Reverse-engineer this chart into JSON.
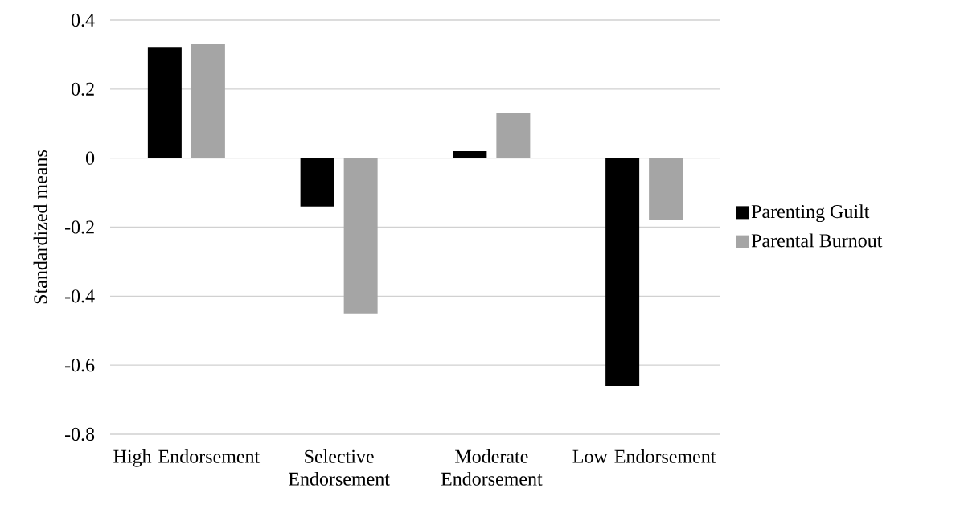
{
  "chart_data": {
    "type": "bar",
    "ylabel": "Standardized means",
    "categories": [
      "High Endorsement",
      "Selective Endorsement",
      "Moderate Endorsement",
      "Low Endorsement"
    ],
    "series": [
      {
        "name": "Parenting Guilt",
        "color": "#000000",
        "values": [
          0.32,
          -0.14,
          0.02,
          -0.66
        ]
      },
      {
        "name": "Parental Burnout",
        "color": "#a5a5a5",
        "values": [
          0.33,
          -0.45,
          0.13,
          -0.18
        ]
      }
    ],
    "ylim": [
      -0.8,
      0.4
    ],
    "yticks": [
      -0.8,
      -0.6,
      -0.4,
      -0.2,
      0,
      0.2,
      0.4
    ],
    "grid": "y",
    "legend": "right"
  }
}
